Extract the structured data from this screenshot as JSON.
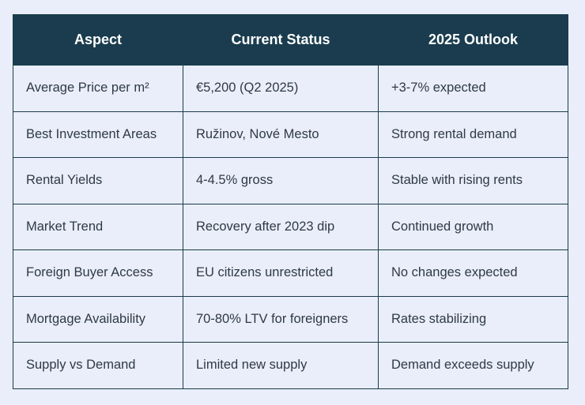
{
  "table": {
    "headers": [
      "Aspect",
      "Current Status",
      "2025 Outlook"
    ],
    "rows": [
      [
        "Average Price per m²",
        "€5,200 (Q2 2025)",
        "+3-7% expected"
      ],
      [
        "Best Investment Areas",
        "Ružinov, Nové Mesto",
        "Strong rental demand"
      ],
      [
        "Rental Yields",
        "4-4.5% gross",
        "Stable with rising rents"
      ],
      [
        "Market Trend",
        "Recovery after 2023 dip",
        "Continued growth"
      ],
      [
        "Foreign Buyer Access",
        "EU citizens unrestricted",
        "No changes expected"
      ],
      [
        "Mortgage Availability",
        "70-80% LTV for foreigners",
        "Rates stabilizing"
      ],
      [
        "Supply vs Demand",
        "Limited new supply",
        "Demand exceeds supply"
      ]
    ]
  },
  "colors": {
    "header_bg": "#1a3c4e",
    "header_text": "#ffffff",
    "cell_bg": "#e9eefa",
    "border": "#1c3a4c",
    "cell_text": "#2f3a44"
  }
}
